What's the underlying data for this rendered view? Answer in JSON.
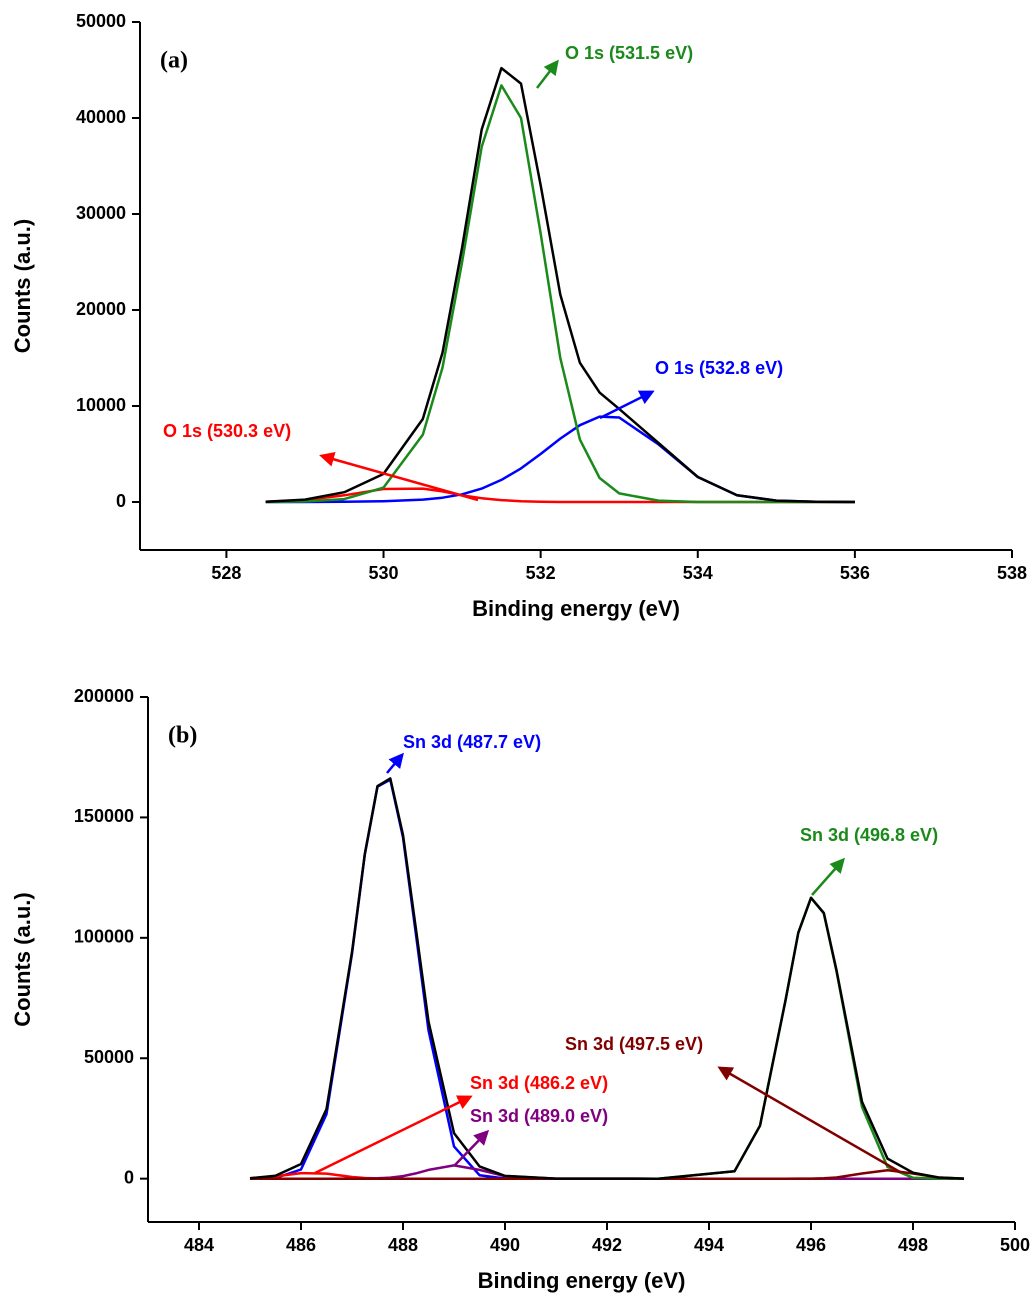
{
  "chart_data": [
    {
      "type": "line",
      "label": "(a)",
      "x_label": "Binding energy (eV)",
      "y_label": "Counts (a.u.)",
      "xlim": [
        526.9,
        538
      ],
      "xticks": [
        528,
        530,
        532,
        534,
        536,
        538
      ],
      "ylim": [
        -5000,
        50000
      ],
      "yticks": [
        0,
        10000,
        20000,
        30000,
        40000,
        50000
      ],
      "x": [
        528.5,
        529,
        529.5,
        530,
        530.5,
        530.75,
        531,
        531.25,
        531.5,
        531.75,
        532,
        532.25,
        532.5,
        532.75,
        533,
        533.5,
        534,
        534.5,
        535,
        535.5,
        536
      ],
      "series": [
        {
          "color": "#ff0000",
          "values": [
            20,
            200,
            700,
            1350,
            1400,
            1100,
            700,
            400,
            200,
            80,
            30,
            0,
            0,
            0,
            0,
            0,
            0,
            0,
            0,
            0,
            0
          ]
        },
        {
          "color": "#0000ff",
          "values": [
            0,
            0,
            20,
            80,
            250,
            450,
            800,
            1400,
            2300,
            3500,
            5000,
            6600,
            8000,
            8900,
            8800,
            6000,
            2600,
            700,
            150,
            20,
            0
          ]
        },
        {
          "color": "#1a8a1a",
          "values": [
            0,
            50,
            300,
            1500,
            7000,
            14000,
            25000,
            37000,
            43400,
            40000,
            28000,
            15000,
            6500,
            2500,
            900,
            150,
            0,
            0,
            0,
            0,
            0
          ]
        },
        {
          "color": "#000000",
          "values": [
            20,
            250,
            1020,
            2930,
            8650,
            15550,
            26500,
            38800,
            45200,
            43580,
            33030,
            21600,
            14500,
            11400,
            9700,
            6150,
            2600,
            700,
            150,
            20,
            0
          ]
        }
      ],
      "annotations": [
        {
          "text": "O 1s (531.5 eV)",
          "color": "#1a8a1a"
        },
        {
          "text": "O 1s (532.8 eV)",
          "color": "#0000ff"
        },
        {
          "text": "O 1s (530.3 eV)",
          "color": "#ff0000"
        }
      ]
    },
    {
      "type": "line",
      "label": "(b)",
      "x_label": "Binding energy (eV)",
      "y_label": "Counts (a.u.)",
      "xlim": [
        483,
        500
      ],
      "xticks": [
        484,
        486,
        488,
        490,
        492,
        494,
        496,
        498,
        500
      ],
      "ylim": [
        -18000,
        200000
      ],
      "yticks": [
        0,
        50000,
        100000,
        150000,
        200000
      ],
      "x": [
        485,
        485.5,
        486,
        486.5,
        487,
        487.25,
        487.5,
        487.75,
        488,
        488.25,
        488.5,
        489,
        489.5,
        490,
        491,
        493,
        494.5,
        495,
        495.5,
        495.75,
        496,
        496.25,
        496.5,
        497,
        497.5,
        498,
        498.5,
        499
      ],
      "series": [
        {
          "color": "#0000ff",
          "values": [
            10,
            270,
            3800,
            26800,
            93400,
            134500,
            162800,
            165700,
            141700,
            101900,
            61600,
            13400,
            1450,
            80,
            0,
            0,
            0,
            0,
            0,
            0,
            0,
            0,
            0,
            0,
            0,
            0,
            0,
            0
          ]
        },
        {
          "color": "#ff0000",
          "values": [
            140,
            940,
            2300,
            2090,
            700,
            280,
            85,
            20,
            0,
            0,
            0,
            0,
            0,
            0,
            0,
            0,
            0,
            0,
            0,
            0,
            0,
            0,
            0,
            0,
            0,
            0,
            0,
            0
          ]
        },
        {
          "color": "#800080",
          "values": [
            0,
            0,
            0,
            0,
            7,
            35,
            130,
            420,
            1050,
            2170,
            3650,
            5500,
            3650,
            1050,
            7,
            0,
            0,
            0,
            0,
            0,
            0,
            0,
            0,
            0,
            0,
            0,
            0,
            0
          ]
        },
        {
          "color": "#1a8a1a",
          "values": [
            0,
            0,
            0,
            0,
            0,
            0,
            0,
            0,
            0,
            0,
            0,
            0,
            0,
            0,
            0,
            0,
            3070,
            22000,
            74000,
            102100,
            116600,
            110200,
            86100,
            29800,
            4830,
            370,
            13,
            0
          ]
        },
        {
          "color": "#800000",
          "values": [
            0,
            0,
            0,
            0,
            0,
            0,
            0,
            0,
            0,
            0,
            0,
            0,
            0,
            0,
            0,
            0,
            0,
            0,
            0,
            8,
            39,
            153,
            470,
            2120,
            3500,
            2120,
            470,
            39
          ]
        },
        {
          "color": "#000000",
          "values": [
            150,
            1210,
            6100,
            28890,
            94107,
            134815,
            163015,
            166140,
            142750,
            104070,
            65250,
            18900,
            5100,
            1130,
            7,
            0,
            3070,
            22000,
            74000,
            102108,
            116639,
            110353,
            86570,
            31920,
            8330,
            2490,
            483,
            39
          ]
        }
      ],
      "annotations": [
        {
          "text": "Sn 3d (487.7 eV)",
          "color": "#0000ff"
        },
        {
          "text": "Sn 3d (496.8 eV)",
          "color": "#1a8a1a"
        },
        {
          "text": "Sn 3d (497.5 eV)",
          "color": "#800000"
        },
        {
          "text": "Sn 3d (486.2 eV)",
          "color": "#ff0000"
        },
        {
          "text": "Sn 3d (489.0 eV)",
          "color": "#800080"
        }
      ]
    }
  ]
}
